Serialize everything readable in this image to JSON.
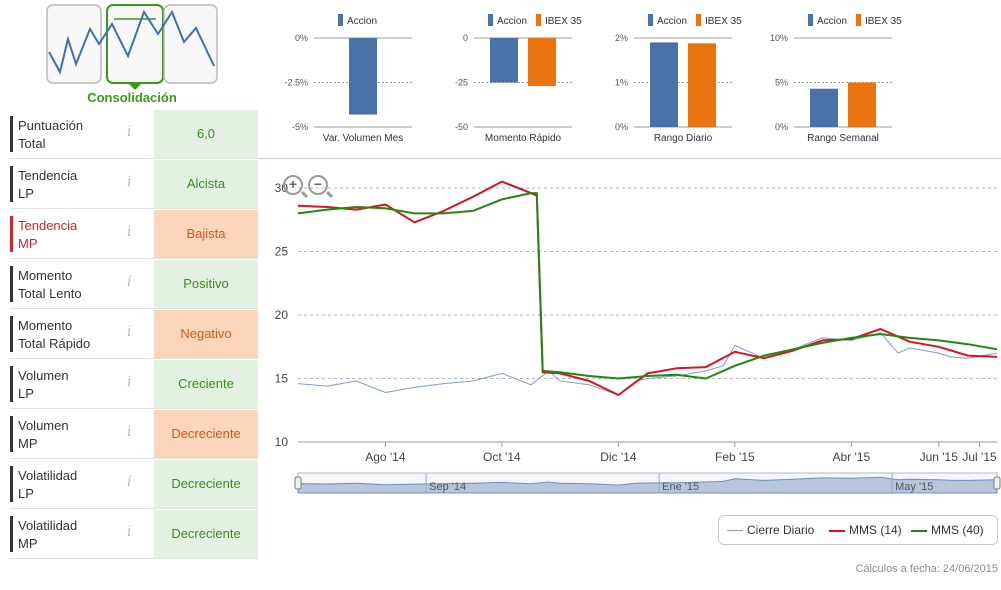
{
  "thumbnail": {
    "label": "Consolidación",
    "icon": "trend-pattern-thumbnail"
  },
  "indicators": [
    {
      "label": "Puntuación\nTotal",
      "value": "6,0",
      "tone": "green",
      "highlight": false
    },
    {
      "label": "Tendencia\nLP",
      "value": "Alcista",
      "tone": "green",
      "highlight": false
    },
    {
      "label": "Tendencia\nMP",
      "value": "Bajista",
      "tone": "orange",
      "highlight": true
    },
    {
      "label": "Momento\nTotal Lento",
      "value": "Positivo",
      "tone": "green",
      "highlight": false
    },
    {
      "label": "Momento\nTotal Rápido",
      "value": "Negativo",
      "tone": "orange",
      "highlight": false
    },
    {
      "label": "Volumen\nLP",
      "value": "Creciente",
      "tone": "green",
      "highlight": false
    },
    {
      "label": "Volumen\nMP",
      "value": "Decreciente",
      "tone": "orange",
      "highlight": false
    },
    {
      "label": "Volatilidad\nLP",
      "value": "Decreciente",
      "tone": "green",
      "highlight": false
    },
    {
      "label": "Volatilidad\nMP",
      "value": "Decreciente",
      "tone": "green",
      "highlight": false
    }
  ],
  "info_icon": "i",
  "colors": {
    "accion": "#4a72a8",
    "ibex": "#e8730f",
    "cierre": "#7f9ec9",
    "mms14": "#e01020",
    "mms40": "#1e8a10",
    "green_text": "#3b8b22",
    "orange_text": "#d2591e"
  },
  "chart_data": [
    {
      "type": "bar",
      "title": "Var. Volumen Mes",
      "series": [
        {
          "name": "Accion",
          "values": [
            -4.3
          ]
        }
      ],
      "yticks": [
        "0%",
        "-2.5%",
        "-5%"
      ],
      "ylim": [
        -5,
        0
      ]
    },
    {
      "type": "bar",
      "title": "Momento Rápido",
      "series": [
        {
          "name": "Accion",
          "values": [
            -25
          ]
        },
        {
          "name": "IBEX 35",
          "values": [
            -27
          ]
        }
      ],
      "yticks": [
        "0",
        "-25",
        "-50"
      ],
      "ylim": [
        -50,
        0
      ]
    },
    {
      "type": "bar",
      "title": "Rango Diario",
      "series": [
        {
          "name": "Accion",
          "values": [
            1.9
          ]
        },
        {
          "name": "IBEX 35",
          "values": [
            1.88
          ]
        }
      ],
      "yticks": [
        "2%",
        "1%",
        "0%"
      ],
      "ylim": [
        0,
        2
      ]
    },
    {
      "type": "bar",
      "title": "Rango Semanal",
      "series": [
        {
          "name": "Accion",
          "values": [
            4.3
          ]
        },
        {
          "name": "IBEX 35",
          "values": [
            5.0
          ]
        }
      ],
      "yticks": [
        "10%",
        "5%",
        "0%"
      ],
      "ylim": [
        0,
        10
      ]
    },
    {
      "type": "line",
      "title": "",
      "x_labels": [
        "Ago '14",
        "Oct '14",
        "Dic '14",
        "Feb '15",
        "Abr '15",
        "Jun '15",
        "Jul '15"
      ],
      "x_label_months": [
        1.5,
        3.5,
        5.5,
        7.5,
        9.5,
        11.0,
        11.7
      ],
      "yticks": [
        "30",
        "25",
        "20",
        "15",
        "10"
      ],
      "ylim": [
        10,
        30
      ],
      "xlim": [
        0,
        12
      ],
      "series": [
        {
          "name": "Cierre Diario",
          "x": [
            0,
            0.5,
            1,
            1.5,
            2,
            2.5,
            3,
            3.5,
            4,
            4.3,
            4.5,
            5,
            5.5,
            5.8,
            6,
            6.5,
            7,
            7.3,
            7.5,
            8,
            8.5,
            9,
            9.5,
            10,
            10.3,
            10.5,
            11,
            11.2,
            11.5,
            12
          ],
          "y": [
            14.6,
            14.4,
            14.8,
            13.9,
            14.3,
            14.6,
            14.8,
            15.4,
            14.5,
            15.6,
            14.8,
            14.5,
            13.7,
            14.8,
            15.0,
            15.2,
            15.6,
            16.0,
            17.6,
            16.6,
            17.3,
            18.2,
            18.0,
            18.6,
            17.0,
            17.4,
            17.0,
            16.7,
            16.6,
            17.0
          ]
        },
        {
          "name": "MMS (14)",
          "x": [
            0,
            0.5,
            1,
            1.5,
            2,
            2.5,
            3,
            3.5,
            4,
            4.1,
            4.2,
            4.5,
            5,
            5.5,
            6,
            6.5,
            7,
            7.5,
            8,
            8.5,
            9,
            9.5,
            10,
            10.5,
            11,
            11.5,
            12
          ],
          "y": [
            28.6,
            28.5,
            28.3,
            28.7,
            27.3,
            28.2,
            29.3,
            30.5,
            29.6,
            29.4,
            15.5,
            15.4,
            14.8,
            13.7,
            15.4,
            15.8,
            15.9,
            17.1,
            16.6,
            17.2,
            18.0,
            18.1,
            18.9,
            17.9,
            17.5,
            16.8,
            16.7
          ]
        },
        {
          "name": "MMS (40)",
          "x": [
            0,
            0.5,
            1,
            1.5,
            2,
            2.5,
            3,
            3.5,
            4,
            4.1,
            4.2,
            4.5,
            5,
            5.5,
            6,
            6.5,
            7,
            7.5,
            8,
            8.5,
            9,
            9.5,
            10,
            10.5,
            11,
            11.5,
            12
          ],
          "y": [
            28.0,
            28.3,
            28.5,
            28.4,
            28.0,
            28.0,
            28.2,
            29.1,
            29.6,
            29.6,
            15.6,
            15.5,
            15.2,
            15.0,
            15.2,
            15.3,
            15.0,
            16.0,
            16.8,
            17.3,
            17.8,
            18.2,
            18.5,
            18.2,
            18.0,
            17.7,
            17.3
          ]
        }
      ],
      "navigator_labels": [
        "Sep '14",
        "Ene '15",
        "May '15"
      ],
      "navigator_label_months": [
        2.2,
        6.2,
        10.2
      ]
    }
  ],
  "legend": [
    {
      "name": "Cierre Diario"
    },
    {
      "name": "MMS (14)"
    },
    {
      "name": "MMS (40)"
    }
  ],
  "footer": "Cálculos a fecha: 24/06/2015"
}
